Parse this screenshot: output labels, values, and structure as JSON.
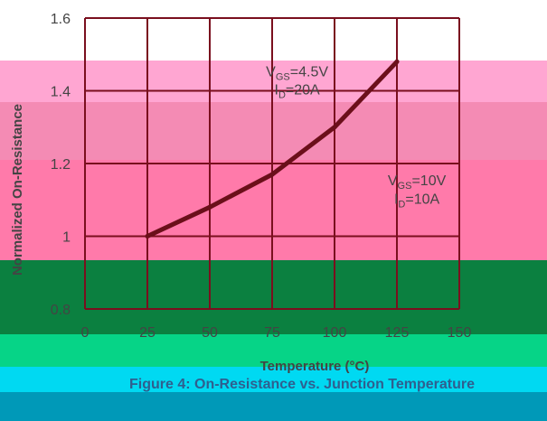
{
  "colors": {
    "band_pink_light": "#ffa6d2",
    "band_pink_mid": "#f48bb4",
    "band_pink_deep": "#ff7aaa",
    "band_green_dark": "#0b8040",
    "band_green_light": "#06d487",
    "band_cyan": "#00d9f2",
    "band_teal": "#0099b8",
    "grid": "#7a0f1e",
    "curve": "#6b0f1a",
    "text": "#444444",
    "caption": "#2f5f8f"
  },
  "caption": "Figure 4: On-Resistance vs. Junction Temperature",
  "chart_data": {
    "type": "line",
    "title": "",
    "xlabel": "Temperature (°C)",
    "ylabel": "Normalized On-Resistance",
    "xlim": [
      0,
      150
    ],
    "ylim": [
      0.8,
      1.6
    ],
    "xticks": [
      0,
      25,
      50,
      75,
      100,
      125,
      150
    ],
    "yticks": [
      0.8,
      1.0,
      1.2,
      1.4,
      1.6
    ],
    "xtick_labels": [
      "0",
      "25",
      "50",
      "75",
      "100",
      "125",
      "150"
    ],
    "ytick_labels": [
      "0.8",
      "1",
      "1.2",
      "1.4",
      "1.6"
    ],
    "grid": true,
    "series": [
      {
        "x": [
          25,
          50,
          75,
          100,
          125
        ],
        "y": [
          1.0,
          1.08,
          1.17,
          1.3,
          1.48
        ]
      }
    ],
    "annotations": [
      {
        "main": "V",
        "sub": "GS",
        "tail": "=4.5V",
        "x": 85,
        "y": 1.44
      },
      {
        "main": "I",
        "sub": "D",
        "tail": "=20A",
        "x": 85,
        "y": 1.39
      },
      {
        "main": "V",
        "sub": "GS",
        "tail": "=10V",
        "x": 133,
        "y": 1.14
      },
      {
        "main": "I",
        "sub": "D",
        "tail": "=10A",
        "x": 133,
        "y": 1.09
      }
    ]
  }
}
